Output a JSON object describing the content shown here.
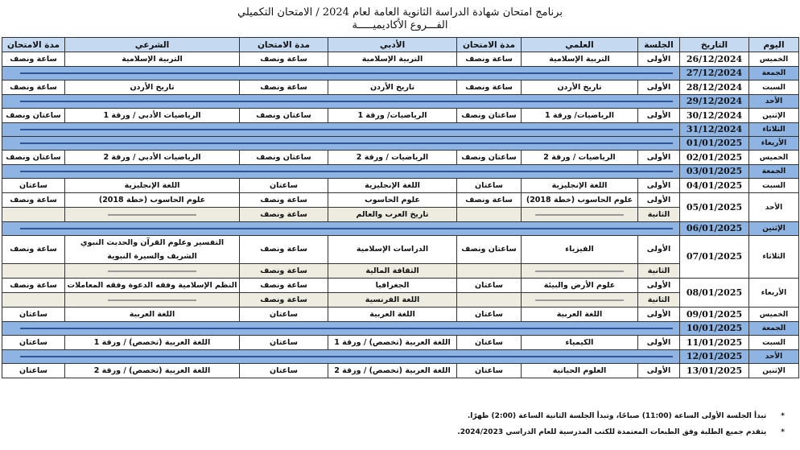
{
  "title": {
    "line1": "برنامج امتحان شهادة الدراسة الثانوية العامة لعام 2024 / الامتحان التكميلي",
    "line2": "الفـــروع الأكاديميـــــة"
  },
  "headers": {
    "day": "اليوم",
    "date": "التاريخ",
    "session": "الجلسة",
    "scientific": "العلمي",
    "duration1": "مدة الامتحان",
    "literary": "الأدبي",
    "duration2": "مدة الامتحان",
    "sharia": "الشرعي",
    "duration3": "مدة الامتحان"
  },
  "rows": [
    {
      "day": "الخميس",
      "date": "26/12/2024",
      "sessions": [
        {
          "label": "الأولى",
          "sci": "التربية الإسلامية",
          "sci_d": "ساعة ونصف",
          "lit": "التربية الإسلامية",
          "lit_d": "ساعة ونصف",
          "sha": "التربية الإسلامية",
          "sha_d": "ساعة ونصف"
        }
      ]
    },
    {
      "day": "الجمعة",
      "date": "27/12/2024",
      "holiday": true
    },
    {
      "day": "السبت",
      "date": "28/12/2024",
      "sessions": [
        {
          "label": "الأولى",
          "sci": "تاريخ الأردن",
          "sci_d": "ساعة ونصف",
          "lit": "تاريخ الأردن",
          "lit_d": "ساعة ونصف",
          "sha": "تاريخ الأردن",
          "sha_d": "ساعة ونصف"
        }
      ]
    },
    {
      "day": "الأحد",
      "date": "29/12/2024",
      "holiday": true
    },
    {
      "day": "الإثنين",
      "date": "30/12/2024",
      "sessions": [
        {
          "label": "الأولى",
          "sci": "الرياضيات/ ورقة 1",
          "sci_d": "ساعتان ونصف",
          "lit": "الرياضيات/ ورقة 1",
          "lit_d": "ساعتان ونصف",
          "sha": "الرياضيات الأدبي / ورقة 1",
          "sha_d": "ساعتان ونصف"
        }
      ]
    },
    {
      "day": "الثلاثاء",
      "date": "31/12/2024",
      "holiday": true
    },
    {
      "day": "الأربعاء",
      "date": "01/01/2025",
      "holiday": true
    },
    {
      "day": "الخميس",
      "date": "02/01/2025",
      "sessions": [
        {
          "label": "الأولى",
          "sci": "الرياضيات / ورقة 2",
          "sci_d": "ساعتان ونصف",
          "lit": "الرياضيات / ورقة 2",
          "lit_d": "ساعتان ونصف",
          "sha": "الرياضيات الأدبي / ورقة 2",
          "sha_d": "ساعتان ونصف"
        }
      ]
    },
    {
      "day": "الجمعة",
      "date": "03/01/2025",
      "holiday": true
    },
    {
      "day": "السبت",
      "date": "04/01/2025",
      "sessions": [
        {
          "label": "الأولى",
          "sci": "اللغة الإنجليزية",
          "sci_d": "ساعتان",
          "lit": "اللغة الإنجليزية",
          "lit_d": "ساعتان",
          "sha": "اللغة الإنجليزية",
          "sha_d": "ساعتان"
        }
      ]
    },
    {
      "day": "الأحد",
      "date": "05/01/2025",
      "sessions": [
        {
          "label": "الأولى",
          "sci": "علوم الحاسوب (خطة 2018)",
          "sci_d": "ساعة ونصف",
          "lit": "علوم الحاسوب",
          "lit_d": "ساعة ونصف",
          "sha": "علوم الحاسوب (خطة 2018)",
          "sha_d": "ساعة ونصف"
        },
        {
          "label": "الثانية",
          "sci": null,
          "sci_d": "",
          "lit": "تاريخ العرب والعالم",
          "lit_d": "ساعة ونصف",
          "sha": null,
          "sha_d": ""
        }
      ]
    },
    {
      "day": "الإثنين",
      "date": "06/01/2025",
      "holiday": true
    },
    {
      "day": "الثلاثاء",
      "date": "07/01/2025",
      "sessions": [
        {
          "label": "الأولى",
          "sci": "الفيزياء",
          "sci_d": "ساعتان ونصف",
          "lit": "الدراسات الإسلامية",
          "lit_d": "ساعة ونصف",
          "sha": "التفسير وعلوم القرآن والحديث النبوي الشريف والسيرة النبوية",
          "sha_d": "ساعة ونصف",
          "tall": true
        },
        {
          "label": "الثانية",
          "sci": null,
          "sci_d": "",
          "lit": "الثقافة المالية",
          "lit_d": "ساعة ونصف",
          "sha": null,
          "sha_d": ""
        }
      ]
    },
    {
      "day": "الأربعاء",
      "date": "08/01/2025",
      "sessions": [
        {
          "label": "الأولى",
          "sci": "علوم الأرض والبيئة",
          "sci_d": "ساعتان",
          "lit": "الجغرافيا",
          "lit_d": "ساعة ونصف",
          "sha": "النظم الإسلامية وفقه الدعوة وفقه المعاملات",
          "sha_d": "ساعة ونصف"
        },
        {
          "label": "الثانية",
          "sci": null,
          "sci_d": "",
          "lit": "اللغة الفرنسية",
          "lit_d": "ساعة ونصف",
          "sha": null,
          "sha_d": ""
        }
      ]
    },
    {
      "day": "الخميس",
      "date": "09/01/2025",
      "sessions": [
        {
          "label": "الأولى",
          "sci": "اللغة العربية",
          "sci_d": "ساعتان",
          "lit": "اللغة العربية",
          "lit_d": "ساعتان",
          "sha": "اللغة العربية",
          "sha_d": "ساعتان"
        }
      ]
    },
    {
      "day": "الجمعة",
      "date": "10/01/2025",
      "holiday": true
    },
    {
      "day": "السبت",
      "date": "11/01/2025",
      "sessions": [
        {
          "label": "الأولى",
          "sci": "الكيمياء",
          "sci_d": "ساعتان",
          "lit": "اللغة العربية (تخصص) / ورقة 1",
          "lit_d": "ساعتان",
          "sha": "اللغة العربية (تخصص) / ورقة 1",
          "sha_d": "ساعتان"
        }
      ]
    },
    {
      "day": "الأحد",
      "date": "12/01/2025",
      "holiday": true
    },
    {
      "day": "الإثنين",
      "date": "13/01/2025",
      "sessions": [
        {
          "label": "الأولى",
          "sci": "العلوم الحياتية",
          "sci_d": "ساعتان",
          "lit": "اللغة العربية (تخصص) / ورقة 2",
          "lit_d": "ساعتان",
          "sha": "اللغة العربية (تخصص) / ورقة 2",
          "sha_d": "ساعتان"
        }
      ]
    }
  ],
  "notes": [
    "تبدأ الجلسة الأولى الساعة (11:00) صباحًا، وتبدأ الجلسة الثانية الساعة (2:00) ظهرًا.",
    "يتقدم جميع الطلبة وفق الطبعات المعتمدة للكتب المدرسية للعام الدراسي 2024/2023."
  ],
  "note_bullet": "*",
  "colors": {
    "header": "#c5d9f1",
    "holiday": "#8db4e2",
    "holiday_line": "#2f5597",
    "second_session": "#eeece1"
  }
}
